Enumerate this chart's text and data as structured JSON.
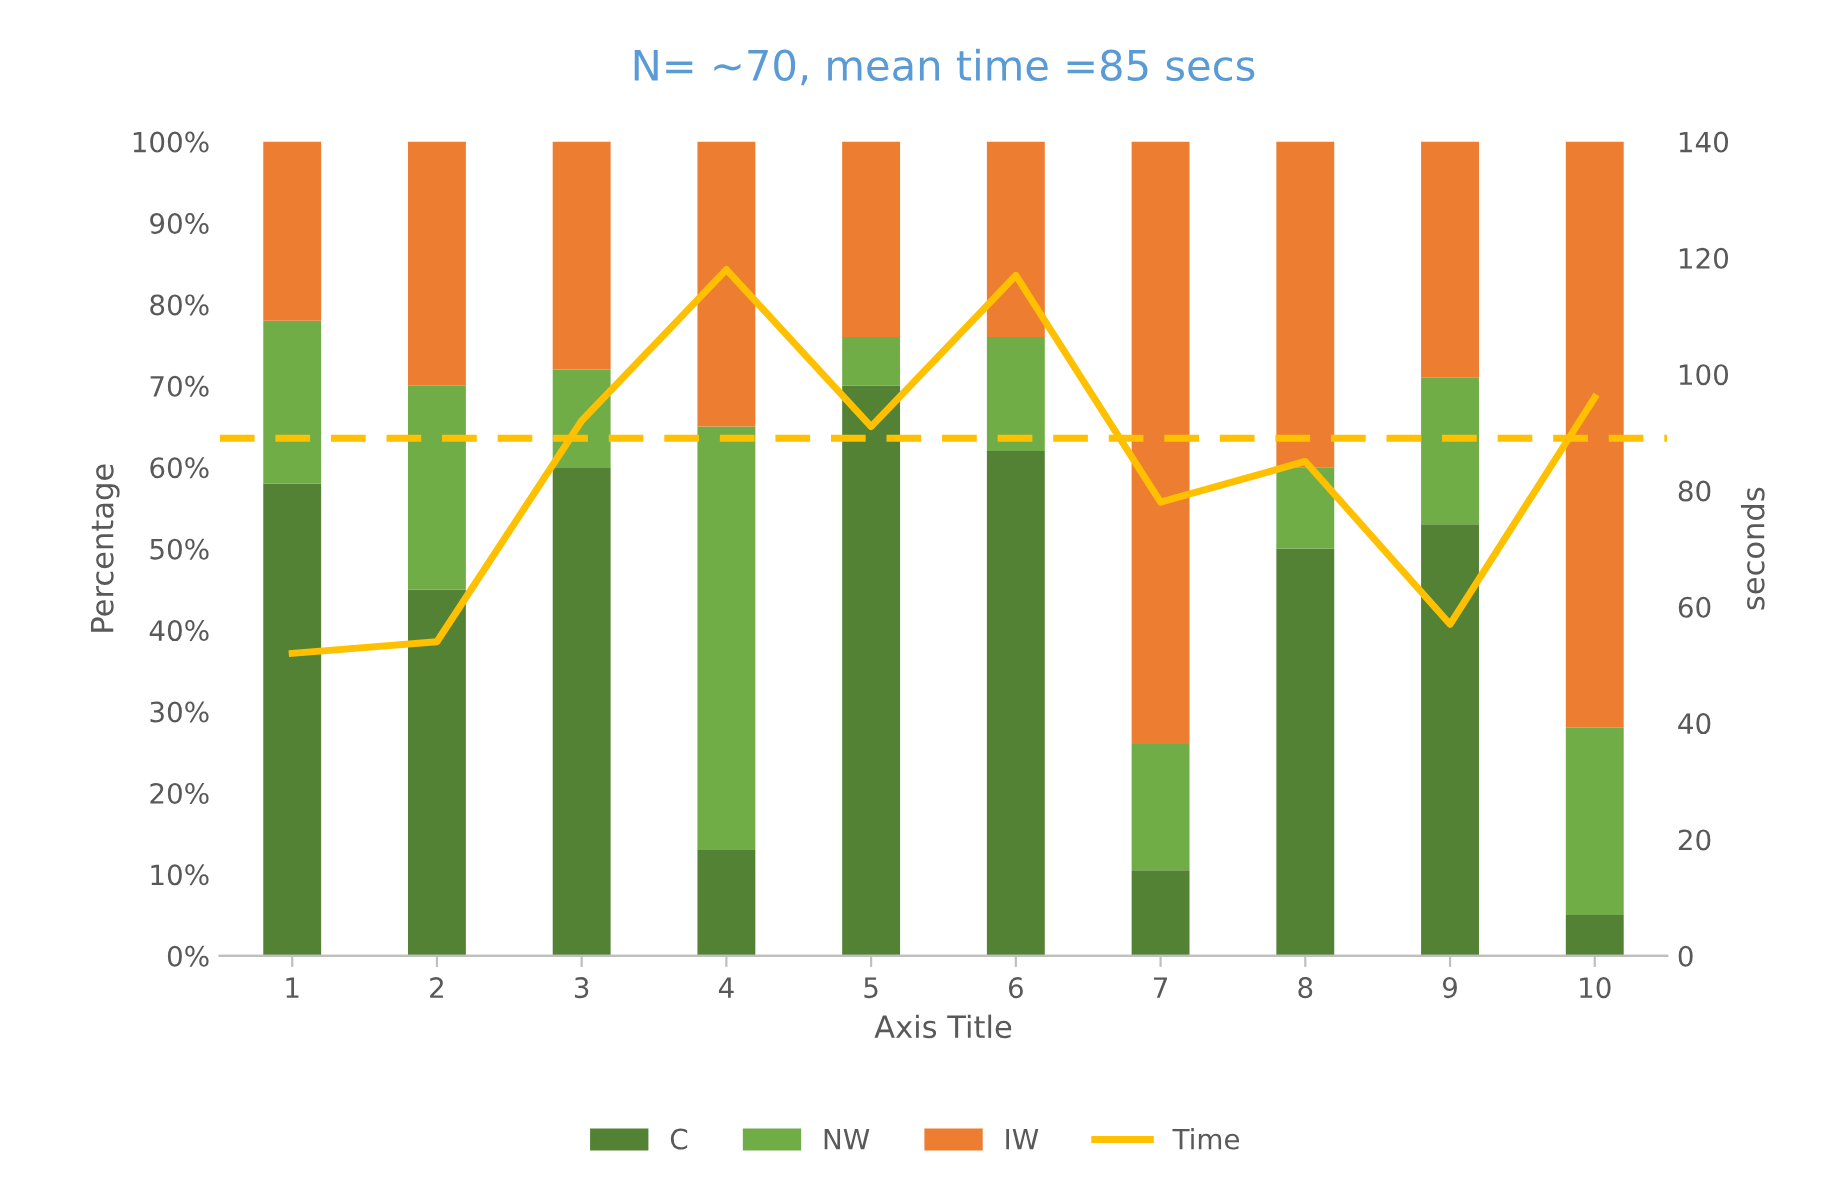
{
  "chart_data": {
    "type": "bar",
    "title": "N= ~70, mean time =85 secs",
    "xlabel": "Axis Title",
    "ylabel": "Percentage",
    "y2label": "seconds",
    "categories": [
      "1",
      "2",
      "3",
      "4",
      "5",
      "6",
      "7",
      "8",
      "9",
      "10"
    ],
    "stacked": true,
    "series": [
      {
        "name": "C",
        "color": "#548235",
        "values": [
          58,
          45,
          60,
          13,
          70,
          62,
          10.5,
          50,
          53,
          5
        ]
      },
      {
        "name": "NW",
        "color": "#70ad47",
        "values": [
          20,
          25,
          12,
          52,
          6,
          14,
          15.5,
          10,
          18,
          23
        ]
      },
      {
        "name": "IW",
        "color": "#ed7d31",
        "values": [
          22,
          30,
          28,
          35,
          24,
          24,
          74,
          40,
          29,
          72
        ]
      },
      {
        "name": "Time",
        "type": "line",
        "axis": "y2",
        "color": "#ffc000",
        "values": [
          52,
          54,
          92,
          118,
          91,
          117,
          78,
          85,
          57,
          96
        ]
      }
    ],
    "ylim": [
      0,
      100
    ],
    "yticks": [
      {
        "value": 0,
        "label": "0%"
      },
      {
        "value": 10,
        "label": "10%"
      },
      {
        "value": 20,
        "label": "20%"
      },
      {
        "value": 30,
        "label": "30%"
      },
      {
        "value": 40,
        "label": "40%"
      },
      {
        "value": 50,
        "label": "50%"
      },
      {
        "value": 60,
        "label": "60%"
      },
      {
        "value": 70,
        "label": "70%"
      },
      {
        "value": 80,
        "label": "80%"
      },
      {
        "value": 90,
        "label": "90%"
      },
      {
        "value": 100,
        "label": "100%"
      }
    ],
    "y2lim": [
      0,
      140
    ],
    "y2ticks": [
      0,
      20,
      40,
      60,
      80,
      100,
      120,
      140
    ],
    "ref_lines": [
      {
        "axis": "y2",
        "value": 89,
        "color": "#ffc000",
        "line_style": "dashed"
      }
    ],
    "grid": false,
    "legend": "bottom"
  }
}
